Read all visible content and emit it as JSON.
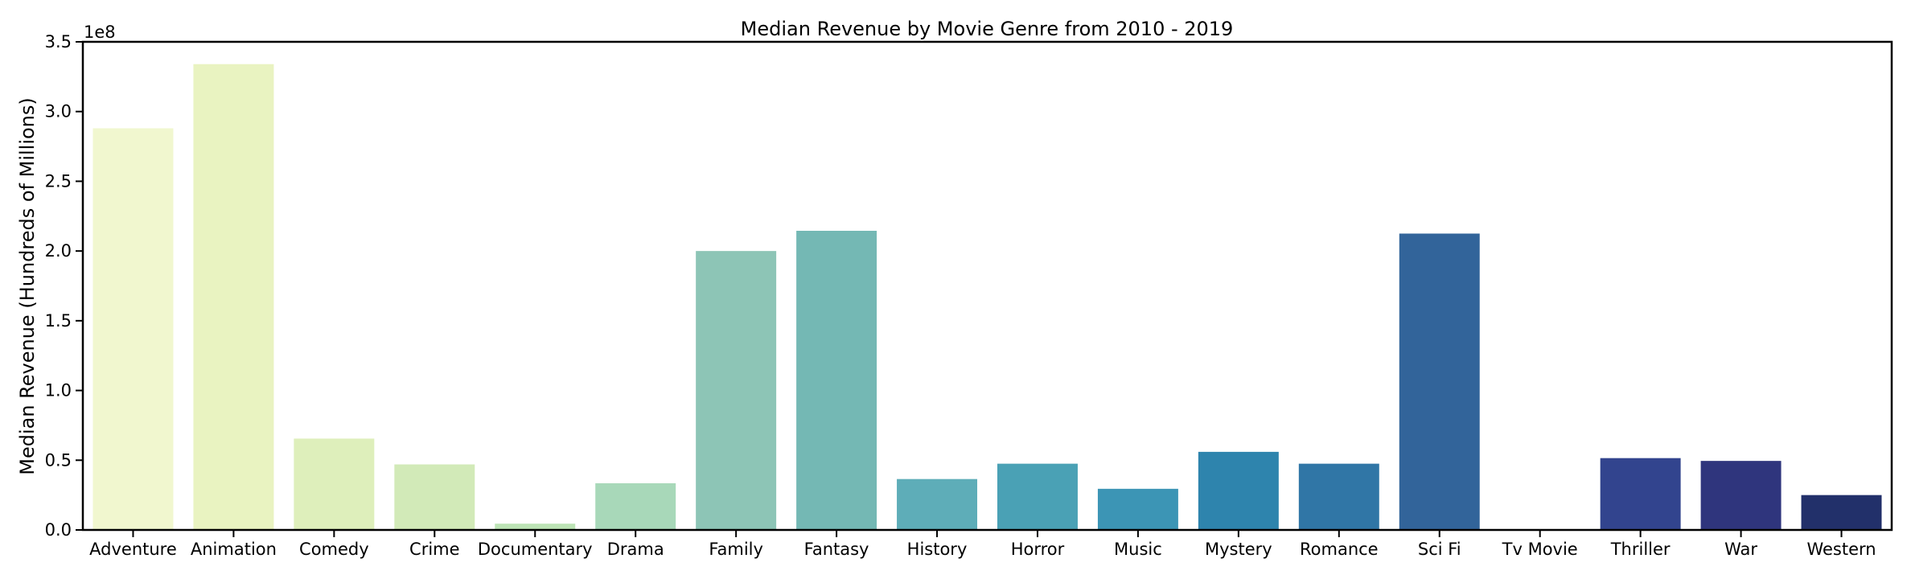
{
  "chart_data": {
    "type": "bar",
    "title": "Median Revenue by Movie Genre from 2010 - 2019",
    "xlabel": "",
    "ylabel": "Median Revenue (Hundreds of Millions)",
    "y_offset_label": "1e8",
    "ylim": [
      0,
      350000000
    ],
    "y_ticks": [
      0,
      50000000,
      100000000,
      150000000,
      200000000,
      250000000,
      300000000,
      350000000
    ],
    "y_tick_labels": [
      "0.0",
      "0.5",
      "1.0",
      "1.5",
      "2.0",
      "2.5",
      "3.0",
      "3.5"
    ],
    "grid": false,
    "categories": [
      "Adventure",
      "Animation",
      "Comedy",
      "Crime",
      "Documentary",
      "Drama",
      "Family",
      "Fantasy",
      "History",
      "Horror",
      "Music",
      "Mystery",
      "Romance",
      "Sci Fi",
      "Tv Movie",
      "Thriller",
      "War",
      "Western"
    ],
    "values": [
      288000000,
      334000000,
      65500000,
      47000000,
      4500000,
      33500000,
      200000000,
      214500000,
      36500000,
      47500000,
      29500000,
      56000000,
      47500000,
      212500000,
      0,
      51500000,
      49500000,
      25000000
    ],
    "colors": [
      "#f1f7cf",
      "#e9f3c1",
      "#deefbb",
      "#d2eab8",
      "#bde4b6",
      "#a8d8b9",
      "#8dc5b6",
      "#74b8b4",
      "#5eadb8",
      "#4aa1b5",
      "#3c95b5",
      "#2e84ad",
      "#3076a6",
      "#32649a",
      "#32539a",
      "#32448e",
      "#2f357d",
      "#22306a"
    ]
  }
}
